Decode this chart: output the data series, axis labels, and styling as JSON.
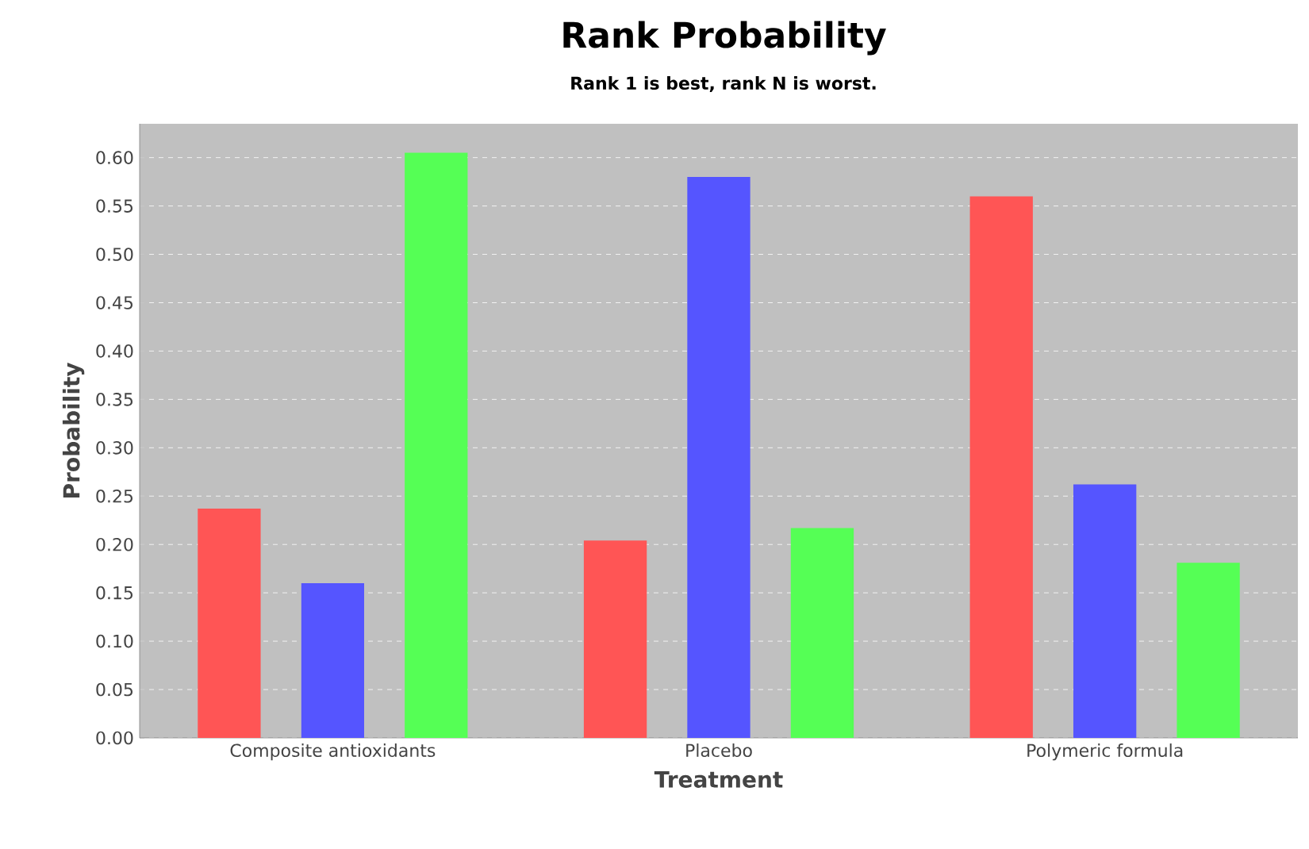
{
  "chart_data": {
    "type": "bar",
    "title": "Rank Probability",
    "subtitle": "Rank 1 is best, rank N is worst.",
    "xlabel": "Treatment",
    "ylabel": "Probability",
    "categories": [
      "Composite antioxidants",
      "Placebo",
      "Polymeric formula"
    ],
    "series": [
      {
        "color": "#ff5555",
        "values": [
          0.237,
          0.204,
          0.56
        ]
      },
      {
        "color": "#5555ff",
        "values": [
          0.16,
          0.58,
          0.262
        ]
      },
      {
        "color": "#55ff55",
        "values": [
          0.605,
          0.217,
          0.181
        ]
      }
    ],
    "ylim": [
      0,
      0.635
    ],
    "yticks": [
      {
        "value": 0,
        "label": "0.00"
      },
      {
        "value": 0.05,
        "label": "0.05"
      },
      {
        "value": 0.1,
        "label": "0.10"
      },
      {
        "value": 0.15,
        "label": "0.15"
      },
      {
        "value": 0.2,
        "label": "0.20"
      },
      {
        "value": 0.25,
        "label": "0.25"
      },
      {
        "value": 0.3,
        "label": "0.30"
      },
      {
        "value": 0.35,
        "label": "0.35"
      },
      {
        "value": 0.4,
        "label": "0.40"
      },
      {
        "value": 0.45,
        "label": "0.45"
      },
      {
        "value": 0.5,
        "label": "0.50"
      },
      {
        "value": 0.55,
        "label": "0.55"
      },
      {
        "value": 0.6,
        "label": "0.60"
      }
    ],
    "grid": "y"
  }
}
